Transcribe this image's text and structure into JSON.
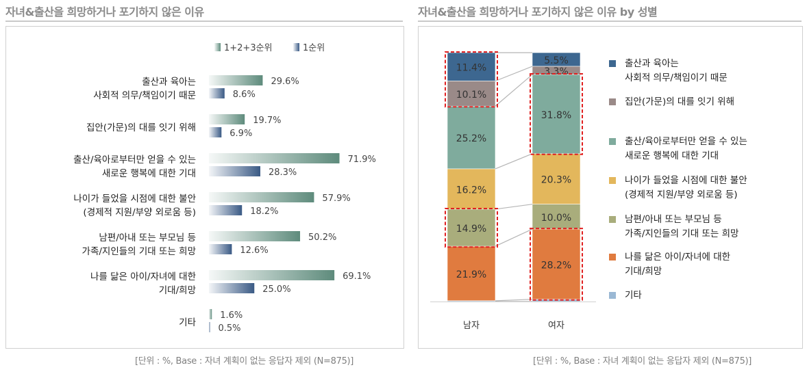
{
  "left": {
    "title": "자녀&출산을 희망하거나 포기하지 않은 이유",
    "footnote": "[단위 : %, Base : 자녀 계획이 없는 응답자 제외 (N=875)]"
  },
  "right": {
    "title": "자녀&출산을 희망하거나 포기하지 않은 이유 by 성별",
    "footnote": "[단위 : %, Base : 자녀 계획이 없는 응답자 제외 (N=875)]"
  },
  "colors": {
    "top3": "#5e8b7c",
    "rank1": "#3a5a85",
    "stack": [
      "#3d6790",
      "#9a8a88",
      "#7fab9d",
      "#e3b75c",
      "#a9ad7c",
      "#e07b3f",
      "#9ab8d4"
    ],
    "highlight": "#e02020"
  },
  "chart_data": [
    {
      "type": "bar",
      "orientation": "horizontal",
      "title": "자녀&출산을 희망하거나 포기하지 않은 이유",
      "categories": [
        [
          "출산과 육아는",
          "사회적 의무/책임이기 때문"
        ],
        [
          "집안(가문)의 대를 잇기 위해"
        ],
        [
          "출산/육아로부터만 얻을 수 있는",
          "새로운 행복에 대한 기대"
        ],
        [
          "나이가 들었을 시점에 대한 불안",
          "(경제적 지원/부양 외로움 등)"
        ],
        [
          "남편/아내 또는 부모님 등",
          "가족/지인들의 기대 또는 희망"
        ],
        [
          "나를 닮은 아이/자녀에 대한",
          "기대/희망"
        ],
        [
          "기타"
        ]
      ],
      "series": [
        {
          "name": "1+2+3순위",
          "values": [
            29.6,
            19.7,
            71.9,
            57.9,
            50.2,
            69.1,
            1.6
          ]
        },
        {
          "name": "1순위",
          "values": [
            8.6,
            6.9,
            28.3,
            18.2,
            12.6,
            25.0,
            0.5
          ]
        }
      ],
      "xlim": [
        0,
        100
      ],
      "legend": "top"
    },
    {
      "type": "bar",
      "stacked": true,
      "normalized": true,
      "title": "자녀&출산을 희망하거나 포기하지 않은 이유 by 성별",
      "categories": [
        "남자",
        "여자"
      ],
      "series": [
        {
          "name": "출산과 육아는 사회적 의무/책임이기 때문",
          "label_lines": [
            "출산과 육아는",
            "사회적 의무/책임이기 때문"
          ],
          "values": [
            11.4,
            5.5
          ]
        },
        {
          "name": "집안(가문)의 대를 잇기 위해",
          "label_lines": [
            "집안(가문)의 대를 잇기 위해"
          ],
          "values": [
            10.1,
            3.3
          ]
        },
        {
          "name": "출산/육아로부터만 얻을 수 있는 새로운 행복에 대한 기대",
          "label_lines": [
            "출산/육아로부터만 얻을 수 있는",
            "새로운 행복에 대한 기대"
          ],
          "values": [
            25.2,
            31.8
          ]
        },
        {
          "name": "나이가 들었을 시점에 대한 불안 (경제적 지원/부양 외로움 등)",
          "label_lines": [
            "나이가 들었을 시점에 대한 불안",
            "(경제적 지원/부양 외로움 등)"
          ],
          "values": [
            16.2,
            20.3
          ]
        },
        {
          "name": "남편/아내 또는 부모님 등 가족/지인들의 기대 또는 희망",
          "label_lines": [
            "남편/아내 또는 부모님 등",
            "가족/지인들의 기대 또는 희망"
          ],
          "values": [
            14.9,
            10.0
          ]
        },
        {
          "name": "나를 닮은 아이/자녀에 대한 기대/희망",
          "label_lines": [
            "나를 닮은 아이/자녀에 대한",
            "기대/희망"
          ],
          "values": [
            21.9,
            28.2
          ]
        },
        {
          "name": "기타",
          "label_lines": [
            "기타"
          ],
          "values": [
            0.3,
            0.9
          ]
        }
      ],
      "highlighted": {
        "남자": [
          "출산과 육아는 사회적 의무/책임이기 때문",
          "집안(가문)의 대를 잇기 위해",
          "남편/아내 또는 부모님 등 가족/지인들의 기대 또는 희망"
        ],
        "여자": [
          "출산/육아로부터만 얻을 수 있는 새로운 행복에 대한 기대",
          "나를 닮은 아이/자녀에 대한 기대/희망"
        ]
      },
      "legend": "right"
    }
  ]
}
